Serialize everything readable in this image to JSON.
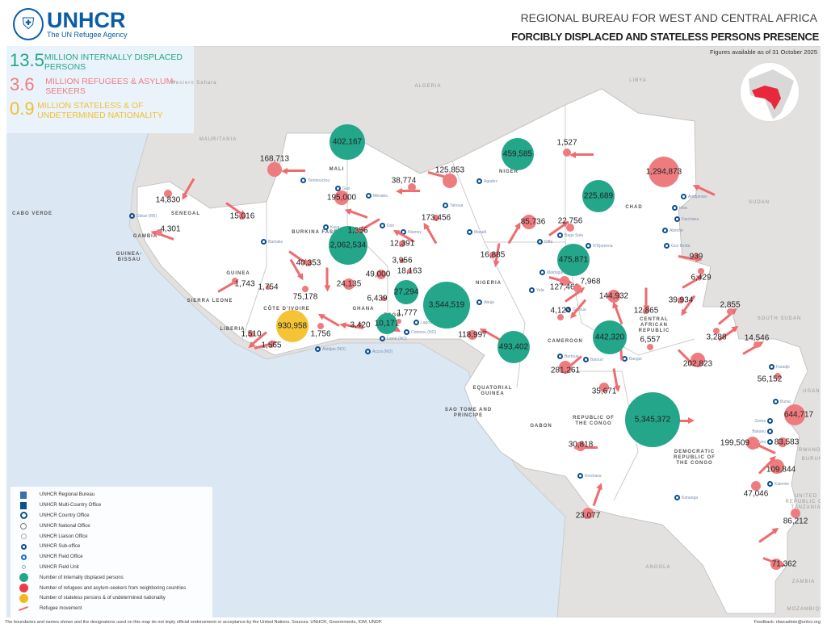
{
  "header": {
    "org": "UNHCR",
    "tagline": "The UN Refugee Agency",
    "title": "REGIONAL BUREAU FOR WEST AND CENTRAL AFRICA",
    "subtitle": "FORCIBLY DISPLACED AND STATELESS PERSONS PRESENCE"
  },
  "stats": [
    {
      "value": "13.5",
      "label": "MILLION INTERNALLY DISPLACED PERSONS",
      "color": "#23a68a"
    },
    {
      "value": "3.6",
      "label": "MILLION REFUGEES & ASYLUM-SEEKERS",
      "color": "#ee7c7f"
    },
    {
      "value": "0.9",
      "label": "MILLION STATELESS & OF UNDETERMINED NATIONALITY",
      "color": "#f0c030"
    }
  ],
  "as_of": "Figures available as of 31 October 2025",
  "countries": [
    "MAURITANIA",
    "MALI",
    "NIGER",
    "CHAD",
    "SENEGAL",
    "CABO VERDE",
    "GAMBIA",
    "GUINEA-BISSAU",
    "GUINEA",
    "SIERRA LEONE",
    "LIBERIA",
    "CÔTE D'IVOIRE",
    "GHANA",
    "TOGO",
    "NIGERIA",
    "CAMEROON",
    "CENTRAL AFRICAN REPUBLIC",
    "EQUATORIAL GUINEA",
    "SAO TOME AND PRINCIPE",
    "GABON",
    "REPUBLIC OF THE CONGO",
    "DEMOCRATIC REPUBLIC OF THE CONGO",
    "ALGERIA",
    "LIBYA",
    "SUDAN",
    "SOUTH SUDAN",
    "UGANDA",
    "RWANDA",
    "BURUNDI",
    "UNITED REPUBLIC OF TANZANIA",
    "ANGOLA",
    "ZAMBIA",
    "Western Sahara",
    "BURKINA FASO",
    "MOZAMBIQUE"
  ],
  "offices": [
    "Dakar (RB)",
    "Bamako",
    "Niamey",
    "Tombouctou",
    "Gao",
    "Ménaka",
    "Agadez",
    "Tahoua",
    "Maradi",
    "Diffa",
    "Baga Sola",
    "N'Djamena",
    "Maiduguri",
    "Abuja",
    "Yola",
    "Garoua",
    "Bangui",
    "Kinshasa",
    "Abidjan (NO)",
    "Accra (NO)",
    "Lomé (NO)",
    "Cotonou (NO)",
    "Lagos",
    "Kananga",
    "Goma",
    "Bukavu",
    "Uvira",
    "Kalemie",
    "Bunia",
    "Faradje",
    "Abéché",
    "Farchana",
    "Goz Beida",
    "Iriba",
    "Amdjarass",
    "Bertoua",
    "Batouri",
    "Kaya",
    "Dori"
  ],
  "markers": {
    "idp": [
      "402,167",
      "459,585",
      "225,689",
      "2,062,534",
      "475,871",
      "27,294",
      "3,544,519",
      "10,171",
      "493,402",
      "442,320",
      "5,345,372"
    ],
    "stateless": [
      "930,958"
    ],
    "refugees": [
      "168,713",
      "14,830",
      "15,016",
      "4,301",
      "195,000",
      "125,853",
      "38,774",
      "1,527",
      "1,294,873",
      "173,456",
      "85,736",
      "22,756",
      "16,885",
      "1,356",
      "12,391",
      "3,956",
      "18,163",
      "40,353",
      "49,000",
      "1,743",
      "1,754",
      "24,135",
      "75,178",
      "6,439",
      "127,462",
      "7,968",
      "939",
      "6,429",
      "39,934",
      "144,932",
      "12,865",
      "4,124",
      "2,855",
      "3,288",
      "14,546",
      "6,557",
      "202,823",
      "118,997",
      "1,777",
      "3,420",
      "1,756",
      "1,510",
      "1,565",
      "281,261",
      "35,671",
      "56,152",
      "644,717",
      "30,818",
      "199,509",
      "83,583",
      "109,844",
      "47,046",
      "23,077",
      "86,212",
      "71,362"
    ]
  },
  "legend": [
    {
      "label": "UNHCR Regional Bureau",
      "icon": "regional-bureau-icon"
    },
    {
      "label": "UNHCR Multi-Country Office",
      "icon": "multi-country-office-icon"
    },
    {
      "label": "UNHCR Country Office",
      "icon": "country-office-icon"
    },
    {
      "label": "UNHCR National Office",
      "icon": "national-office-icon"
    },
    {
      "label": "UNHCR Liaison Office",
      "icon": "liaison-office-icon"
    },
    {
      "label": "UNHCR Sub-office",
      "icon": "sub-office-icon"
    },
    {
      "label": "UNHCR Field Office",
      "icon": "field-office-icon"
    },
    {
      "label": "UNHCR Field Unit",
      "icon": "field-unit-icon"
    },
    {
      "label": "Number of internally displaced persons",
      "icon": "idp-circle-icon"
    },
    {
      "label": "Number of refugees and asylum-seekers from neighboring countries",
      "icon": "refugee-circle-icon"
    },
    {
      "label": "Number of stateless persons & of undetermined nationality",
      "icon": "stateless-circle-icon"
    },
    {
      "label": "Refugee movement",
      "icon": "arrow-icon"
    }
  ],
  "footer": "The boundaries and names shown and the designations used on this map do not imply official endorsement or acceptance by the United Nations. Sources: UNHCR, Governments, IOM, UNDP.",
  "feedback": "Feedback: rbwcadmin@unhcr.org"
}
